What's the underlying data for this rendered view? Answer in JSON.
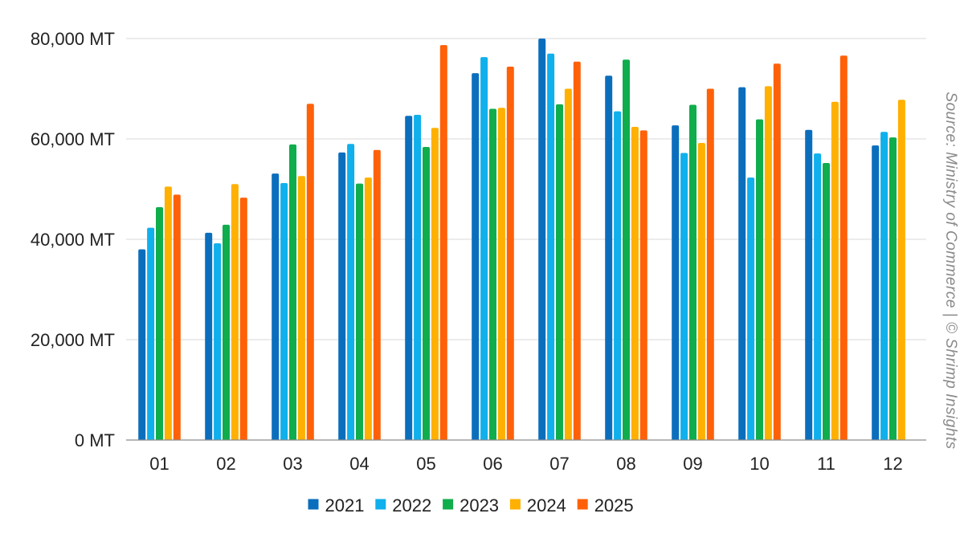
{
  "chart_data": {
    "type": "bar",
    "categories": [
      "01",
      "02",
      "03",
      "04",
      "05",
      "06",
      "07",
      "08",
      "09",
      "10",
      "11",
      "12"
    ],
    "series": [
      {
        "name": "2021",
        "color": "#0b6ebd",
        "values": [
          38000,
          41300,
          53100,
          57300,
          64600,
          73100,
          80000,
          72600,
          62700,
          70300,
          61800,
          58700
        ]
      },
      {
        "name": "2022",
        "color": "#0fb0ec",
        "values": [
          42300,
          39200,
          51200,
          59000,
          64800,
          76300,
          77000,
          65500,
          57200,
          52300,
          57100,
          61400
        ]
      },
      {
        "name": "2023",
        "color": "#0fad4c",
        "values": [
          46400,
          42900,
          58900,
          51100,
          58400,
          66000,
          66900,
          75800,
          66800,
          63900,
          55200,
          60300
        ]
      },
      {
        "name": "2024",
        "color": "#ffb000",
        "values": [
          50500,
          51000,
          52600,
          52300,
          62200,
          66200,
          70000,
          62400,
          59200,
          70500,
          67400,
          67800
        ]
      },
      {
        "name": "2025",
        "color": "#ff6108",
        "values": [
          48900,
          48300,
          67000,
          57800,
          78700,
          74400,
          75400,
          61700,
          70000,
          75000,
          76600,
          null
        ]
      }
    ],
    "y_ticks": [
      "0 MT",
      "20,000 MT",
      "40,000 MT",
      "60,000 MT",
      "80,000 MT"
    ],
    "ylim": [
      0,
      80000
    ],
    "grid": true,
    "legend_position": "bottom-center",
    "source": "Source: Ministry of Commerce | © Shrimp Insights"
  }
}
